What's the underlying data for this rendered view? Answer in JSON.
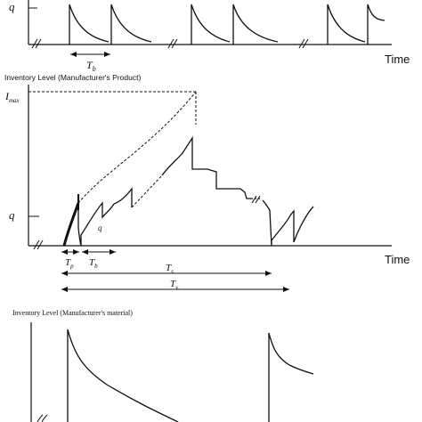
{
  "top_panel": {
    "y_label": "q",
    "x_label": "Time",
    "interval_label": "T",
    "interval_subscript": "b"
  },
  "middle_panel": {
    "title": "Inventory Level (Manufacturer's Product)",
    "y_label_max": "I",
    "y_label_max_subscript": "max",
    "y_label_q": "q",
    "x_label": "Time",
    "small_q": "q",
    "intervals": [
      {
        "name": "T",
        "sub": "p"
      },
      {
        "name": "T",
        "sub": "b"
      },
      {
        "name": "T",
        "sub": "s"
      },
      {
        "name": "T",
        "sub": "v"
      }
    ]
  },
  "bottom_panel": {
    "title": "Inventory Level (Manufacturer's material)"
  }
}
